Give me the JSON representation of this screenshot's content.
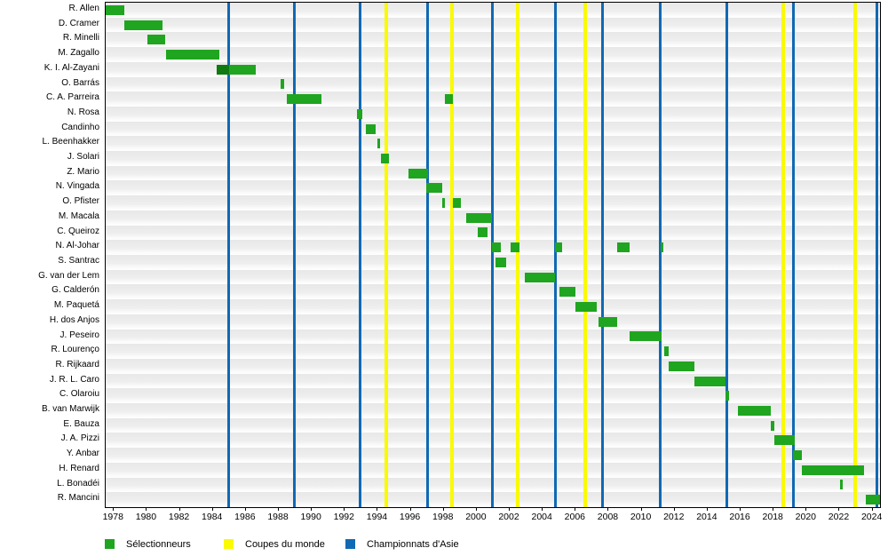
{
  "chart_data": {
    "type": "bar",
    "variant": "gantt-timeline",
    "orientation": "horizontal",
    "grid": "row-stripes",
    "legend_position": "bottom",
    "xlabel": "",
    "ylabel": "",
    "x_axis": {
      "min": 1977.5,
      "max": 2024.45,
      "tick_years": [
        1978,
        1980,
        1982,
        1984,
        1986,
        1988,
        1990,
        1992,
        1994,
        1996,
        1998,
        2000,
        2002,
        2004,
        2006,
        2008,
        2010,
        2012,
        2014,
        2016,
        2018,
        2020,
        2022,
        2024
      ]
    },
    "rows": [
      {
        "name": "R. Allen",
        "segments": [
          [
            1977.5,
            1978.62
          ]
        ]
      },
      {
        "name": "D. Cramer",
        "segments": [
          [
            1978.65,
            1980.97
          ]
        ]
      },
      {
        "name": "R. Minelli",
        "segments": [
          [
            1980.05,
            1981.12
          ]
        ]
      },
      {
        "name": "M. Zagallo",
        "segments": [
          [
            1981.15,
            1984.38
          ]
        ]
      },
      {
        "name": "K. I. Al-Zayani",
        "segments": [
          [
            1984.22,
            1986.6
          ]
        ],
        "dark_segments": [
          [
            1984.22,
            1984.98
          ]
        ]
      },
      {
        "name": "O. Barrás",
        "segments": [
          [
            1988.1,
            1988.3
          ]
        ]
      },
      {
        "name": "C. A. Parreira",
        "segments": [
          [
            1988.5,
            1990.58
          ],
          [
            1998.05,
            1998.55
          ]
        ]
      },
      {
        "name": "N. Rosa",
        "segments": [
          [
            1992.75,
            1993.05
          ]
        ]
      },
      {
        "name": "Candinho",
        "segments": [
          [
            1993.3,
            1993.88
          ]
        ]
      },
      {
        "name": "L. Beenhakker",
        "segments": [
          [
            1993.95,
            1994.15
          ]
        ]
      },
      {
        "name": "J. Solari",
        "segments": [
          [
            1994.17,
            1994.7
          ]
        ]
      },
      {
        "name": "Z. Mario",
        "segments": [
          [
            1995.85,
            1997.05
          ]
        ]
      },
      {
        "name": "N. Vingada",
        "segments": [
          [
            1996.92,
            1997.9
          ]
        ]
      },
      {
        "name": "O. Pfister",
        "segments": [
          [
            1997.92,
            1998.07
          ],
          [
            1998.55,
            1999.02
          ]
        ]
      },
      {
        "name": "M. Macala",
        "segments": [
          [
            1999.35,
            2000.93
          ]
        ]
      },
      {
        "name": "C. Queiroz",
        "segments": [
          [
            2000.05,
            2000.65
          ]
        ]
      },
      {
        "name": "N. Al-Johar",
        "segments": [
          [
            2000.93,
            2001.45
          ],
          [
            2002.05,
            2002.6
          ],
          [
            2004.72,
            2005.15
          ],
          [
            2008.5,
            2009.25
          ],
          [
            2011.15,
            2011.32
          ]
        ]
      },
      {
        "name": "S. Santrac",
        "segments": [
          [
            2001.15,
            2001.8
          ]
        ]
      },
      {
        "name": "G. van der Lem",
        "segments": [
          [
            2002.92,
            2004.72
          ]
        ]
      },
      {
        "name": "G. Calderón",
        "segments": [
          [
            2005.0,
            2006.0
          ]
        ]
      },
      {
        "name": "M. Paquetá",
        "segments": [
          [
            2006.0,
            2007.27
          ]
        ]
      },
      {
        "name": "H. dos Anjos",
        "segments": [
          [
            2007.4,
            2008.5
          ]
        ]
      },
      {
        "name": "J. Peseiro",
        "segments": [
          [
            2009.25,
            2011.2
          ]
        ]
      },
      {
        "name": "R. Lourenço",
        "segments": [
          [
            2011.37,
            2011.62
          ]
        ]
      },
      {
        "name": "R. Rijkaard",
        "segments": [
          [
            2011.65,
            2013.2
          ]
        ]
      },
      {
        "name": "J. R. L. Caro",
        "segments": [
          [
            2013.2,
            2015.08
          ]
        ]
      },
      {
        "name": "C. Olaroiu",
        "segments": [
          [
            2015.1,
            2015.3
          ]
        ]
      },
      {
        "name": "B. van Marwijk",
        "segments": [
          [
            2015.82,
            2017.85
          ]
        ]
      },
      {
        "name": "E. Bauza",
        "segments": [
          [
            2017.85,
            2018.05
          ]
        ]
      },
      {
        "name": "J. A. Pizzi",
        "segments": [
          [
            2018.05,
            2019.3
          ]
        ]
      },
      {
        "name": "Y. Anbar",
        "segments": [
          [
            2019.2,
            2019.72
          ]
        ]
      },
      {
        "name": "H. Renard",
        "segments": [
          [
            2019.72,
            2023.5
          ]
        ]
      },
      {
        "name": "L. Bonadéi",
        "segments": [
          [
            2022.05,
            2022.2
          ]
        ]
      },
      {
        "name": "R. Mancini",
        "segments": [
          [
            2023.58,
            2024.45
          ]
        ]
      }
    ],
    "event_lines": {
      "world_cups": {
        "label": "Coupes du monde",
        "color": "#FAFA00",
        "years": [
          1994.5,
          1998.5,
          2002.5,
          2006.55,
          2018.6,
          2022.95
        ]
      },
      "asian_championships": {
        "label": "Championnats d'Asie",
        "color": "#1069B4",
        "years": [
          1984.98,
          1988.95,
          1992.9,
          1997.0,
          2000.93,
          2004.76,
          2007.6,
          2011.13,
          2015.15,
          2019.2,
          2024.25
        ]
      }
    },
    "legend": [
      {
        "label": "Sélectionneurs",
        "color": "#1FA51F"
      },
      {
        "label": "Coupes du monde",
        "color": "#FAFA00"
      },
      {
        "label": "Championnats d'Asie",
        "color": "#1069B4"
      }
    ],
    "colors": {
      "bar": "#1FA51F",
      "bar_overlap": "#0F7A0F",
      "world_cup_line": "#FAFA00",
      "asian_cup_line": "#1069B4",
      "axis": "#000000",
      "row_stripe_top": "#E8E8E8",
      "row_stripe_bottom": "#FFFFFF"
    }
  }
}
